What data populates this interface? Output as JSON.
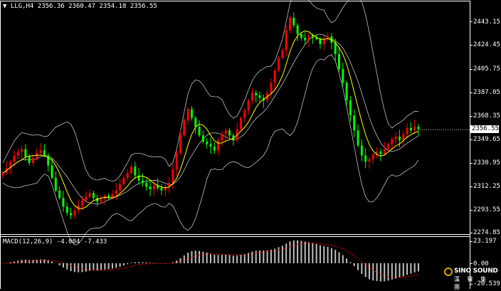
{
  "symbol_header": {
    "symbol": "LLG,H4",
    "open": "2356.36",
    "high": "2360.47",
    "low": "2354.18",
    "close": "2356.55"
  },
  "price_axis": {
    "ticks": [
      "2443.15",
      "2424.45",
      "2405.75",
      "2387.05",
      "2368.35",
      "2349.65",
      "2330.95",
      "2312.25",
      "2293.55",
      "2274.85"
    ],
    "current_price": "2356.55"
  },
  "macd_header": {
    "label": "MACD(12,26,9)",
    "main": "-4.004",
    "signal": "-7.433"
  },
  "macd_axis": {
    "ticks": [
      "23.197",
      "0.00",
      "-20.539"
    ]
  },
  "logo": {
    "name": "SINO SOUND",
    "subtitle": "漢 聲 集 團"
  },
  "colors": {
    "bull": "#ff0000",
    "bear": "#00ff00",
    "bands": "#c0c0c0",
    "ma": "#ffff00",
    "signal": "#ff0000",
    "histogram": "#c0c0c0",
    "background": "#000000"
  },
  "chart_data": {
    "type": "candlestick",
    "ylim": [
      2270,
      2452
    ],
    "closes": [
      2322,
      2326,
      2331,
      2336,
      2339,
      2341,
      2335,
      2330,
      2334,
      2338,
      2340,
      2336,
      2328,
      2318,
      2308,
      2302,
      2295,
      2290,
      2288,
      2292,
      2296,
      2300,
      2303,
      2306,
      2302,
      2299,
      2301,
      2304,
      2302,
      2305,
      2308,
      2313,
      2318,
      2322,
      2327,
      2320,
      2316,
      2314,
      2311,
      2309,
      2312,
      2310,
      2308,
      2311,
      2314,
      2325,
      2338,
      2352,
      2364,
      2373,
      2366,
      2359,
      2352,
      2347,
      2345,
      2343,
      2340,
      2348,
      2353,
      2356,
      2352,
      2348,
      2357,
      2366,
      2372,
      2380,
      2386,
      2384,
      2382,
      2380,
      2386,
      2394,
      2404,
      2414,
      2420,
      2436,
      2446,
      2440,
      2433,
      2430,
      2428,
      2432,
      2430,
      2429,
      2425,
      2429,
      2431,
      2426,
      2417,
      2405,
      2394,
      2380,
      2368,
      2356,
      2344,
      2336,
      2331,
      2333,
      2337,
      2339,
      2337,
      2341,
      2345,
      2349,
      2351,
      2348,
      2353,
      2358,
      2356,
      2359,
      2357
    ]
  }
}
